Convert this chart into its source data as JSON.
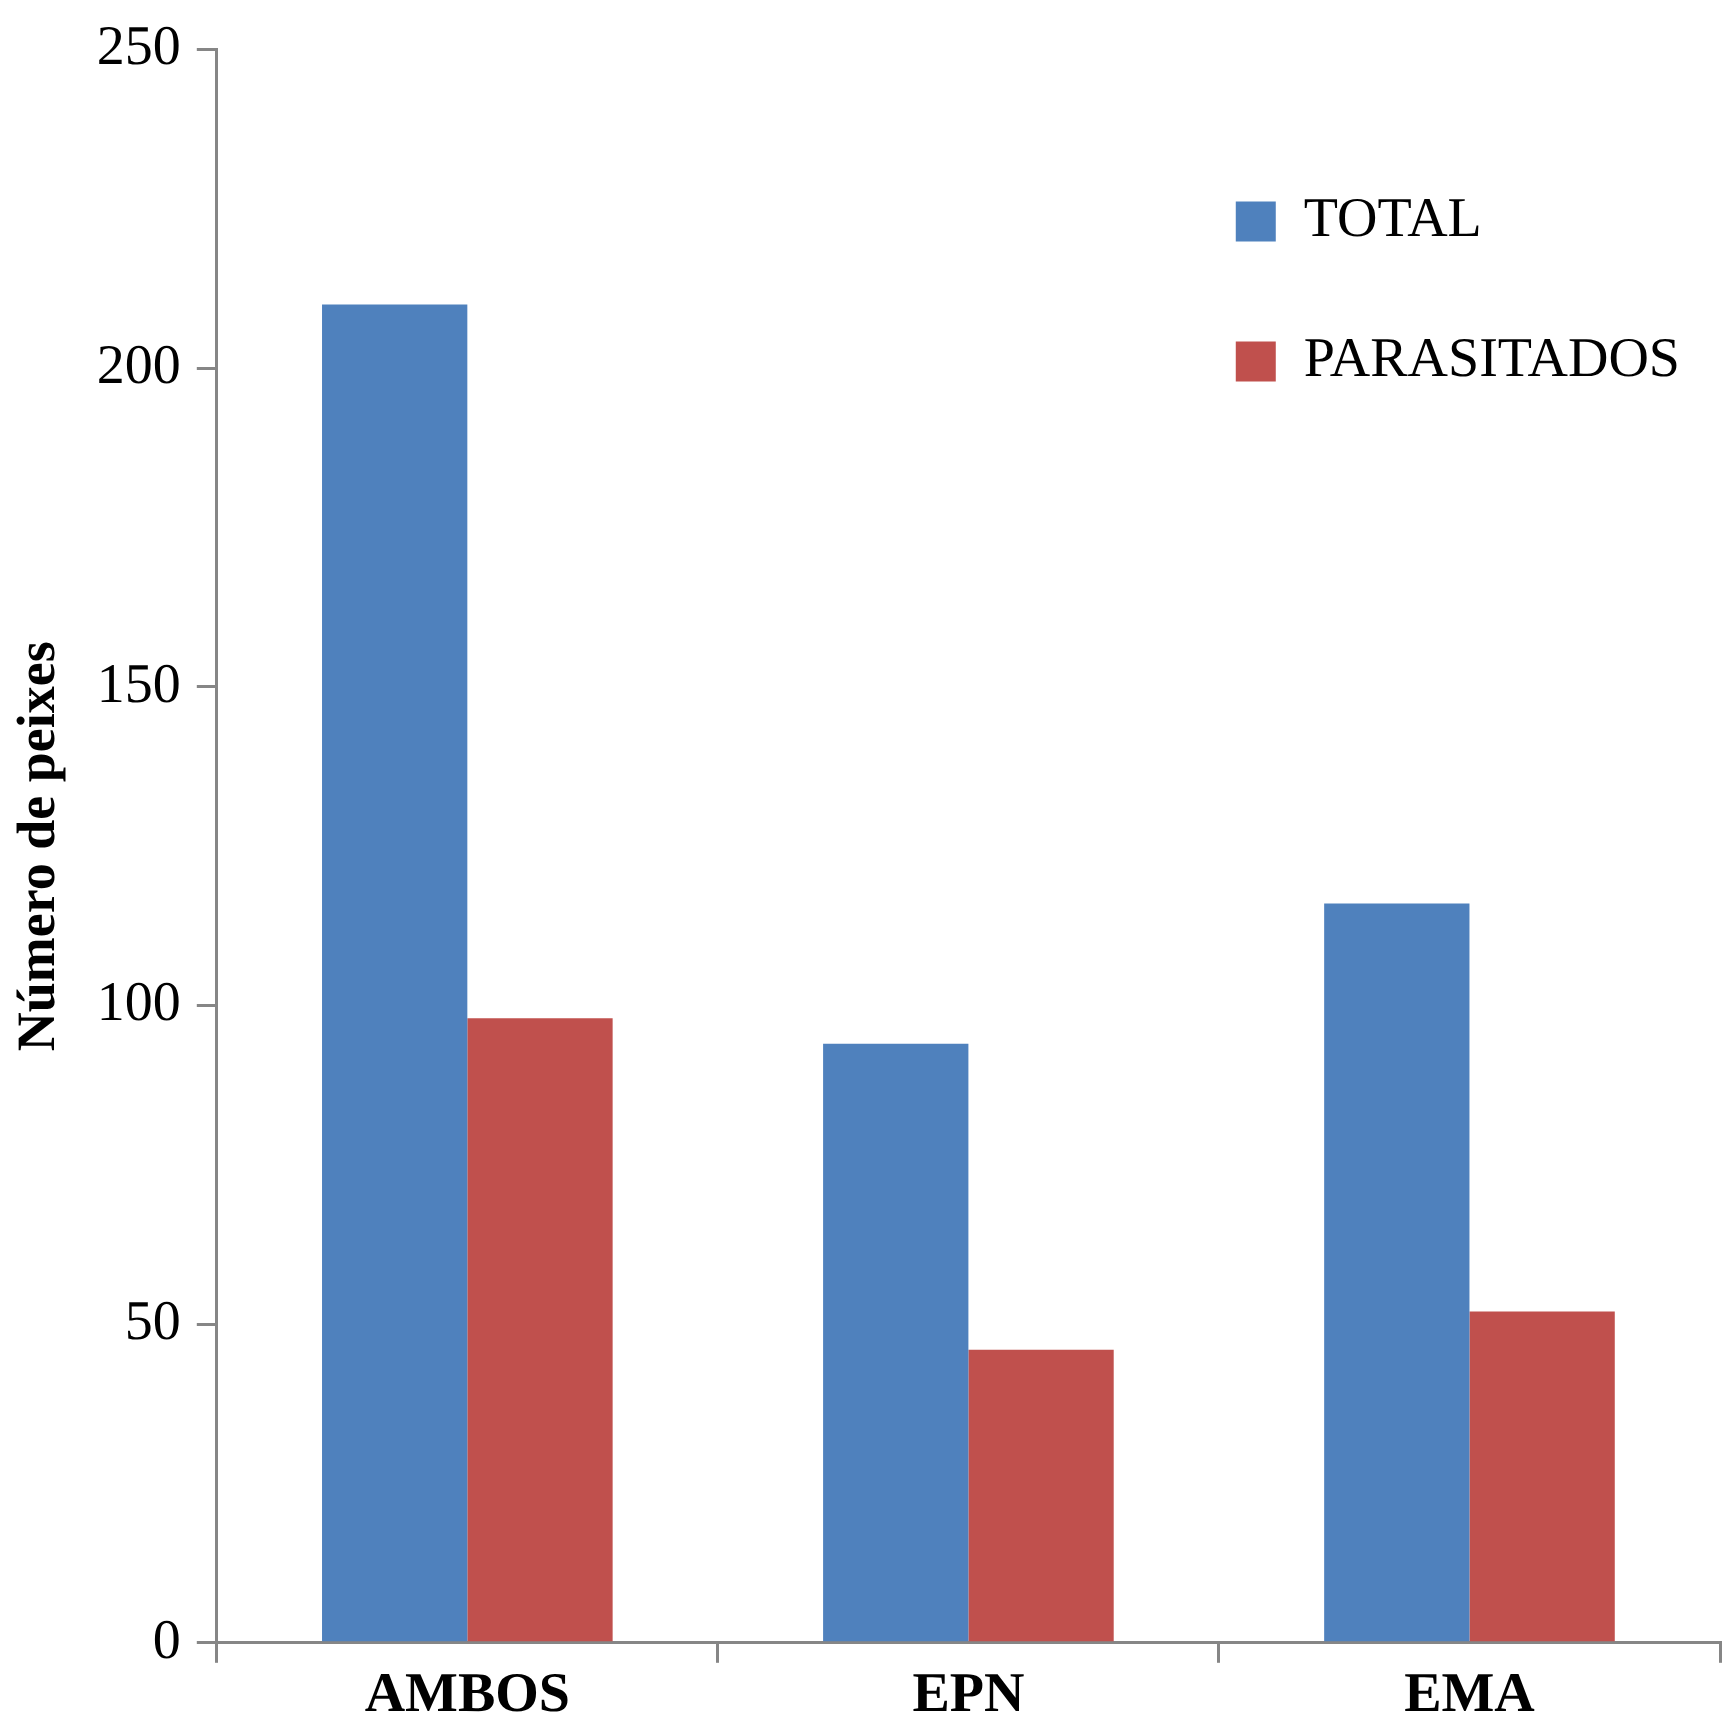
{
  "chart_data": {
    "type": "bar",
    "ylabel": "Número de peixes",
    "categories": [
      "AMBOS",
      "EPN",
      "EMA"
    ],
    "series": [
      {
        "name": "TOTAL",
        "color": "#4f81bd",
        "values": [
          210,
          94,
          116
        ]
      },
      {
        "name": "PARASITADOS",
        "color": "#c0504d",
        "values": [
          98,
          46,
          52
        ]
      }
    ],
    "ylim": [
      0,
      250
    ],
    "yticks": [
      0,
      50,
      100,
      150,
      200,
      250
    ],
    "grid": false,
    "legend": "top right"
  }
}
